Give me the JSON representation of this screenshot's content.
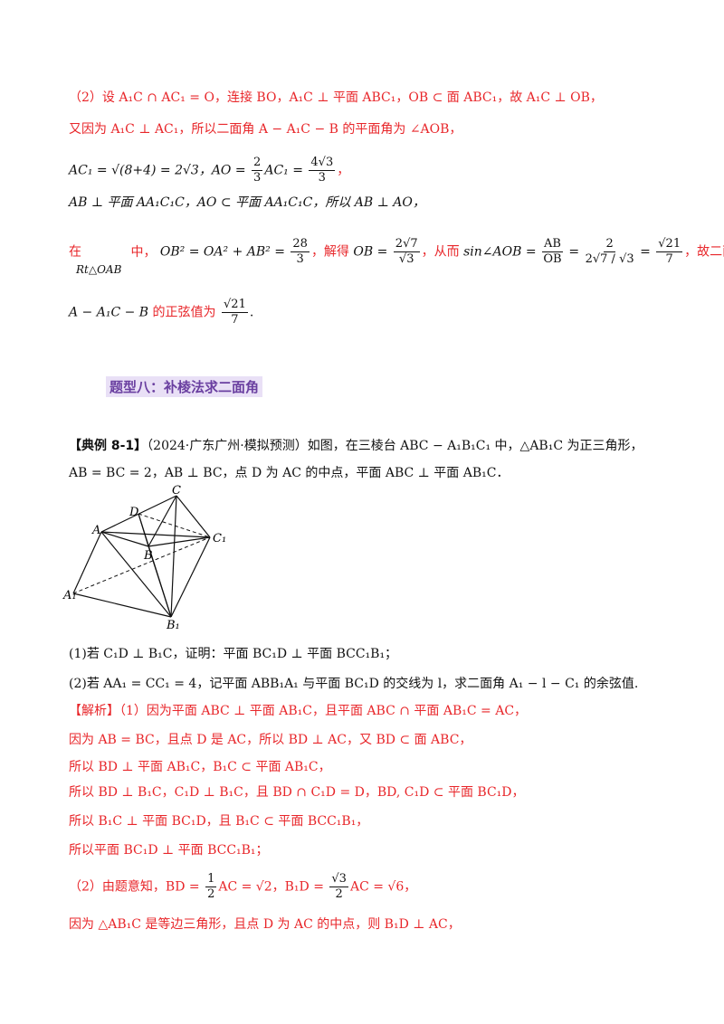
{
  "part2_intro": {
    "l1": "（2）设 A₁C ∩ AC₁ = O，连接 BO，A₁C ⊥ 平面 ABC₁，OB ⊂ 面 ABC₁，故 A₁C ⊥ OB，",
    "l2": "又因为 A₁C ⊥ AC₁，所以二面角 A − A₁C − B 的平面角为 ∠AOB，",
    "l3a": "AC₁ = √(8+4) = 2√3，AO = ",
    "l3_frac1_num": "2",
    "l3_frac1_den": "3",
    "l3b": "AC₁ = ",
    "l3_frac2_num": "4√3",
    "l3_frac2_den": "3",
    "l3c": "，",
    "l4": "AB ⊥ 平面 AA₁C₁C，AO ⊂ 平面 AA₁C₁C，所以 AB ⊥ AO，",
    "l5_in": "在",
    "l5_mid": "中，",
    "l5_rt": "Rt△OAB",
    "l5_eq": "OB² = OA² + AB² = ",
    "l5_frac1_num": "28",
    "l5_frac1_den": "3",
    "l5_solve": "，解得 ",
    "l5_ob": "OB = ",
    "l5_frac2_num": "2√7",
    "l5_frac2_den": "√3",
    "l5_then": "，从而",
    "l5_sin": "sin∠AOB = ",
    "l5_frac3_num": "AB",
    "l5_frac3_den": "OB",
    "l5_eqs": " = ",
    "l5_frac4_num": "2",
    "l5_frac4_den": "2√7 / √3",
    "l5_frac5_num": "√21",
    "l5_frac5_den": "7",
    "l5_end": "，故二面角",
    "l6a": "A − A₁C − B",
    "l6b": " 的正弦值为 ",
    "l6_frac_num": "√21",
    "l6_frac_den": "7",
    "l6c": "."
  },
  "section_heading": "题型八：补棱法求二面角",
  "example": {
    "tag": "【典例 8-1】",
    "l1": "（2024·广东广州·模拟预测）如图，在三棱台 ABC − A₁B₁C₁ 中，△AB₁C 为正三角形，",
    "l2": "AB = BC = 2，AB ⊥ BC，点 D 为 AC 的中点，平面 ABC ⊥ 平面 AB₁C．"
  },
  "figure_labels": {
    "C": "C",
    "D": "D",
    "A": "A",
    "B": "B",
    "C1": "C₁",
    "A1": "A₁",
    "B1": "B₁"
  },
  "questions": {
    "q1": "(1)若 C₁D ⊥ B₁C，证明：平面 BC₁D ⊥ 平面 BCC₁B₁；",
    "q2": "(2)若 AA₁ = CC₁ = 4，记平面 ABB₁A₁ 与平面 BC₁D 的交线为 l，求二面角 A₁ − l − C₁ 的余弦值."
  },
  "solution": {
    "s1": "【解析】（1）因为平面 ABC ⊥ 平面 AB₁C，且平面 ABC ∩ 平面 AB₁C = AC，",
    "s2": "因为 AB = BC，且点 D 是 AC，所以 BD ⊥ AC，又 BD ⊂ 面 ABC，",
    "s3": "所以 BD ⊥ 平面 AB₁C，B₁C ⊂ 平面 AB₁C，",
    "s4": "所以 BD ⊥ B₁C，C₁D ⊥ B₁C，且 BD ∩ C₁D = D，BD, C₁D ⊂ 平面 BC₁D，",
    "s5": "所以 B₁C ⊥ 平面 BC₁D，且 B₁C ⊂ 平面 BCC₁B₁，",
    "s6": "所以平面 BC₁D ⊥ 平面 BCC₁B₁；",
    "s7a": "（2）由题意知，BD = ",
    "s7_frac1_num": "1",
    "s7_frac1_den": "2",
    "s7b": "AC = √2，B₁D = ",
    "s7_frac2_num": "√3",
    "s7_frac2_den": "2",
    "s7c": "AC = √6，",
    "s8": "因为 △AB₁C 是等边三角形，且点 D 为 AC 的中点，则 B₁D ⊥ AC，"
  }
}
